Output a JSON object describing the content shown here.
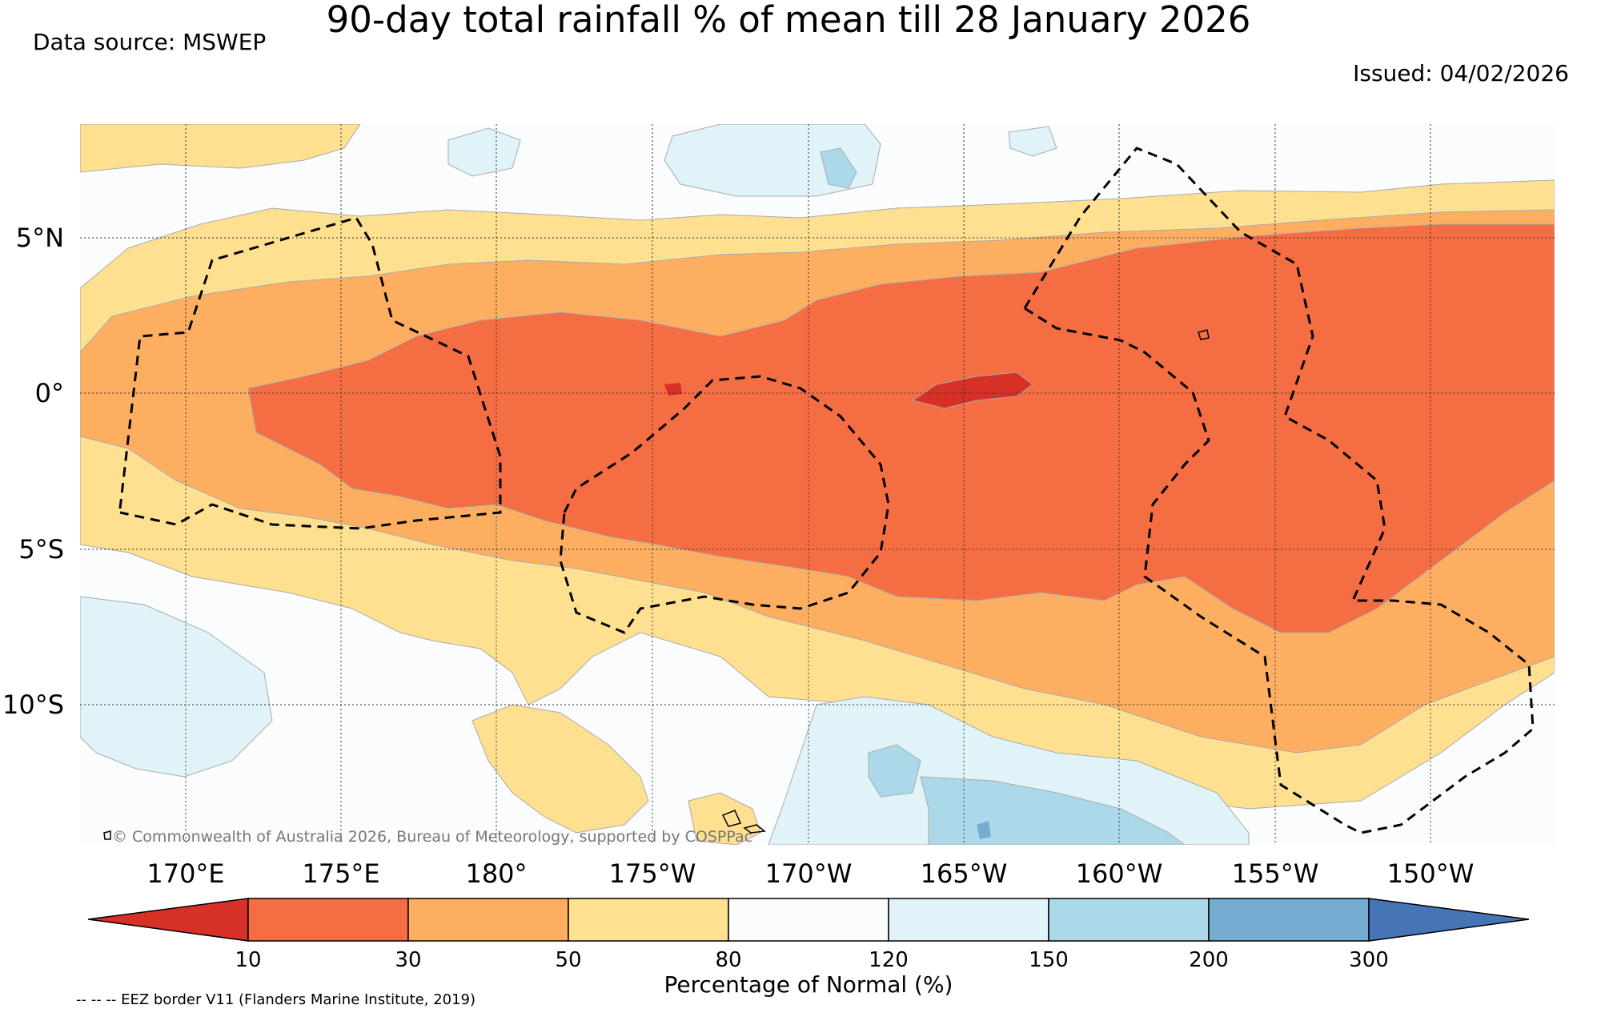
{
  "title": "90-day total rainfall % of mean till 28 January 2026",
  "source": "Data source: MSWEP",
  "issued": "Issued: 04/02/2026",
  "lat_labels": [
    "5°N",
    "0°",
    "5°S",
    "10°S"
  ],
  "lon_labels": [
    "170°E",
    "175°E",
    "180°",
    "175°W",
    "170°W",
    "165°W",
    "160°W",
    "155°W",
    "150°W"
  ],
  "copyright": "© Commonwealth of Australia 2026, Bureau of Meteorology, supported by COSPPac",
  "colorbar": {
    "ticks": [
      "10",
      "30",
      "50",
      "80",
      "120",
      "150",
      "200",
      "300"
    ],
    "title": "Percentage of Normal (%)",
    "colors": [
      "#d73027",
      "#f46d43",
      "#fdae61",
      "#fee090",
      "#fafcfe",
      "#e0f3f8",
      "#abd9e9",
      "#74add1",
      "#4575b4"
    ]
  },
  "footnote": "-- -- -- EEZ border V11 (Flanders Marine Institute, 2019)"
}
